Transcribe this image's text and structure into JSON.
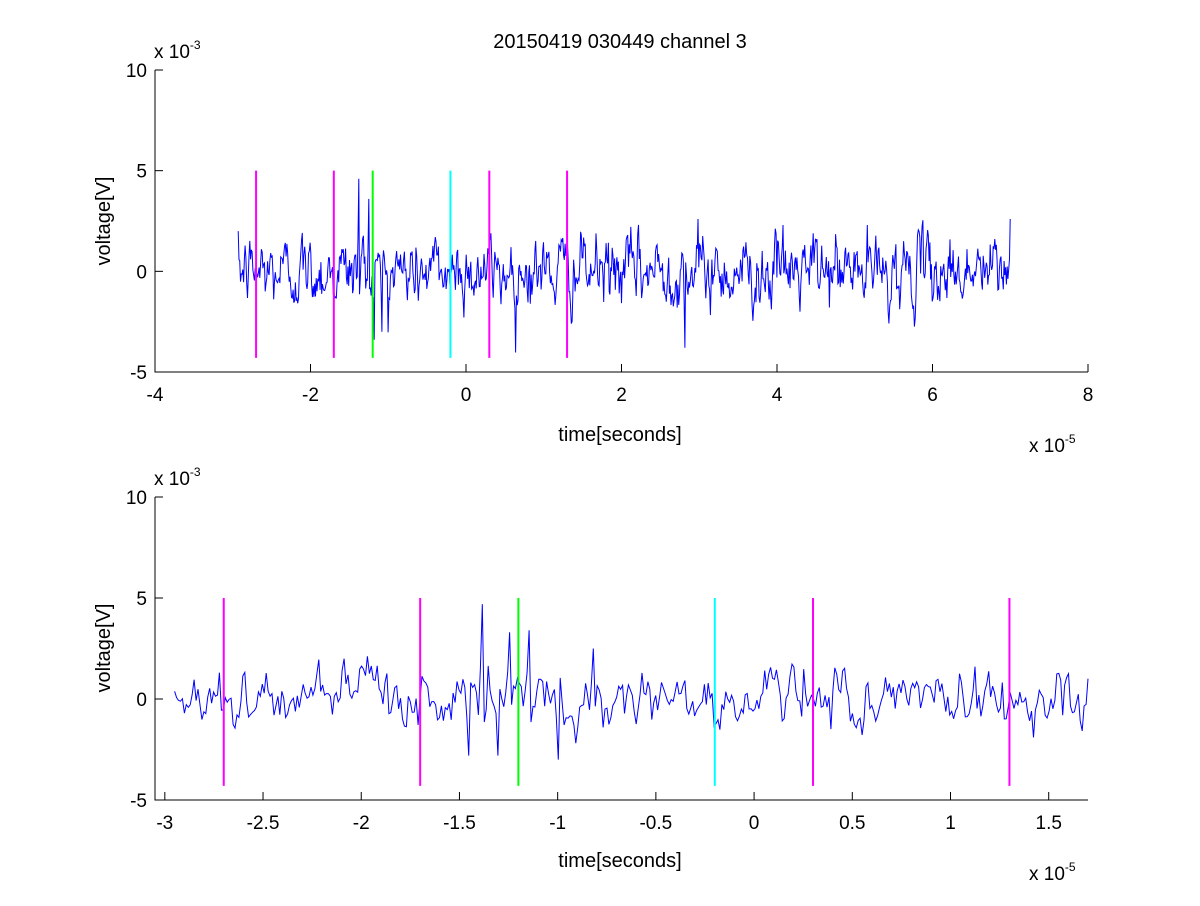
{
  "figure_title": "20150419 030449 channel 3",
  "colors": {
    "trace": "#0000ff",
    "magenta": "#ff00ff",
    "green": "#00ff00",
    "cyan": "#00ffff",
    "axes": "#000000"
  },
  "chart_data": [
    {
      "type": "line",
      "title": "20150419 030449 channel 3",
      "xlabel": "time[seconds]",
      "ylabel": "voltage[V]",
      "x_multiplier": "x 10",
      "x_exponent": "-5",
      "y_multiplier": "x 10",
      "y_exponent": "-3",
      "xlim": [
        -4e-05,
        8e-05
      ],
      "ylim": [
        -0.005,
        0.01
      ],
      "xticks": [
        -4e-05,
        -2e-05,
        0,
        2e-05,
        4e-05,
        6e-05,
        8e-05
      ],
      "xtick_labels": [
        "-4",
        "-2",
        "0",
        "2",
        "4",
        "6",
        "8"
      ],
      "yticks": [
        -0.005,
        0,
        0.005,
        0.01
      ],
      "ytick_labels": [
        "-5",
        "0",
        "5",
        "10"
      ],
      "grid": false,
      "series": [
        {
          "style": "noisy-trace",
          "color": "#0000ff",
          "x_range": [
            -2.93e-05,
            7e-05
          ],
          "samples": 1000,
          "noise_std": 0.0008,
          "features": [
            {
              "x": -1.38e-05,
              "y": 0.0046
            },
            {
              "x": -1.25e-05,
              "y": 0.0036
            },
            {
              "x": -1.18e-05,
              "y": -0.0034
            },
            {
              "x": -1.08e-05,
              "y": -0.003
            },
            {
              "x": 2.82e-05,
              "y": -0.0038
            },
            {
              "x": 2.98e-05,
              "y": 0.0026
            },
            {
              "x": 4.08e-05,
              "y": 0.0023
            },
            {
              "x": 7e-05,
              "y": 0.0026
            }
          ]
        }
      ],
      "markers": [
        {
          "x": -2.7e-05,
          "color": "#ff00ff",
          "y_range": [
            -0.0043,
            0.005
          ]
        },
        {
          "x": -1.7e-05,
          "color": "#ff00ff",
          "y_range": [
            -0.0043,
            0.005
          ]
        },
        {
          "x": -1.2e-05,
          "color": "#00ff00",
          "y_range": [
            -0.0043,
            0.005
          ]
        },
        {
          "x": -2e-06,
          "color": "#00ffff",
          "y_range": [
            -0.0043,
            0.005
          ]
        },
        {
          "x": 3e-06,
          "color": "#ff00ff",
          "y_range": [
            -0.0043,
            0.005
          ]
        },
        {
          "x": 1.3e-05,
          "color": "#ff00ff",
          "y_range": [
            -0.0043,
            0.005
          ]
        }
      ]
    },
    {
      "type": "line",
      "title": "",
      "xlabel": "time[seconds]",
      "ylabel": "voltage[V]",
      "x_multiplier": "x 10",
      "x_exponent": "-5",
      "y_multiplier": "x 10",
      "y_exponent": "-3",
      "xlim": [
        -3.05e-05,
        1.7e-05
      ],
      "ylim": [
        -0.005,
        0.01
      ],
      "xticks": [
        -3e-05,
        -2.5e-05,
        -2e-05,
        -1.5e-05,
        -1e-05,
        -5e-06,
        0,
        5e-06,
        1e-05,
        1.5e-05
      ],
      "xtick_labels": [
        "-3",
        "-2.5",
        "-2",
        "-1.5",
        "-1",
        "-0.5",
        "0",
        "0.5",
        "1",
        "1.5"
      ],
      "yticks": [
        -0.005,
        0,
        0.005,
        0.01
      ],
      "ytick_labels": [
        "-5",
        "0",
        "5",
        "10"
      ],
      "grid": false,
      "series": [
        {
          "style": "noisy-trace",
          "color": "#0000ff",
          "x_range": [
            -2.95e-05,
            1.7e-05
          ],
          "samples": 470,
          "noise_std": 0.0007,
          "features": [
            {
              "x": -2.72e-05,
              "y": 0.0013
            },
            {
              "x": -2.07e-05,
              "y": 0.0012
            },
            {
              "x": -1.45e-05,
              "y": -0.0028
            },
            {
              "x": -1.38e-05,
              "y": 0.0047
            },
            {
              "x": -1.3e-05,
              "y": -0.0028
            },
            {
              "x": -1.24e-05,
              "y": 0.0033
            },
            {
              "x": -1.15e-05,
              "y": 0.0034
            },
            {
              "x": -1e-05,
              "y": -0.003
            },
            {
              "x": -8.2e-06,
              "y": 0.0025
            },
            {
              "x": 1.12e-05,
              "y": 0.0016
            }
          ]
        }
      ],
      "markers": [
        {
          "x": -2.7e-05,
          "color": "#ff00ff",
          "y_range": [
            -0.0043,
            0.005
          ]
        },
        {
          "x": -1.7e-05,
          "color": "#ff00ff",
          "y_range": [
            -0.0043,
            0.005
          ]
        },
        {
          "x": -1.2e-05,
          "color": "#00ff00",
          "y_range": [
            -0.0043,
            0.005
          ]
        },
        {
          "x": -2e-06,
          "color": "#00ffff",
          "y_range": [
            -0.0043,
            0.005
          ]
        },
        {
          "x": 3e-06,
          "color": "#ff00ff",
          "y_range": [
            -0.0043,
            0.005
          ]
        },
        {
          "x": 1.3e-05,
          "color": "#ff00ff",
          "y_range": [
            -0.0043,
            0.005
          ]
        }
      ]
    }
  ]
}
